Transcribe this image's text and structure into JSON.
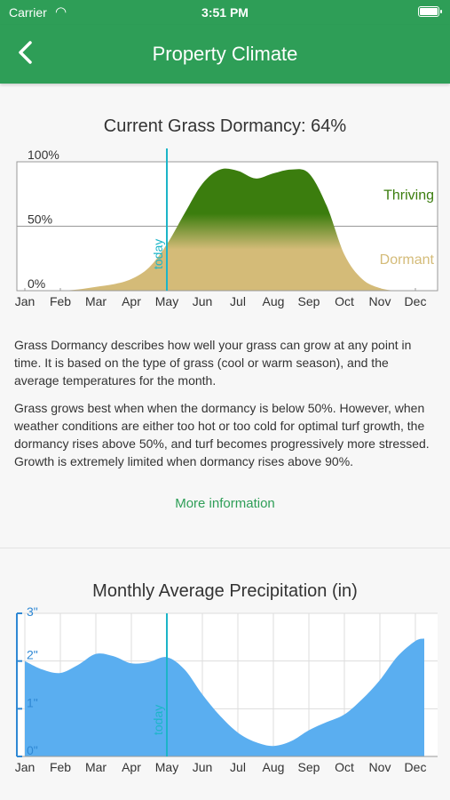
{
  "status_bar": {
    "carrier": "Carrier",
    "time": "3:51 PM",
    "wifi_icon": "wifi-icon",
    "battery_icon": "battery-icon"
  },
  "nav": {
    "title": "Property Climate",
    "back_icon": "chevron-left-icon"
  },
  "dormancy": {
    "title": "Current Grass Dormancy: 64%",
    "today_label": "today",
    "thriving_label": "Thriving",
    "dormant_label": "Dormant",
    "description_1": "Grass Dormancy describes how well your grass can grow at any point in time. It is based on the type of grass (cool or warm season), and the average temperatures for the month.",
    "description_2": "Grass grows best when when the dormancy is below 50%. However, when weather conditions are either too hot or too cold for optimal turf growth, the dormancy rises above 50%, and turf becomes progressively more stressed. Growth is extremely limited when dormancy rises above 90%.",
    "more_info": "More information"
  },
  "precipitation": {
    "title": "Monthly Average Precipitation (in)",
    "today_label": "today"
  },
  "colors": {
    "header": "#2e9e57",
    "thriving": "#3b7d0e",
    "dormant": "#d4bb78",
    "today_line": "#1cb5c8",
    "precip_fill": "#5aaef0",
    "precip_axis": "#2f88d4"
  },
  "chart_data": [
    {
      "type": "area",
      "title": "Current Grass Dormancy: 64%",
      "categories": [
        "Jan",
        "Feb",
        "Mar",
        "Apr",
        "May",
        "Jun",
        "Jul",
        "Aug",
        "Sep",
        "Oct",
        "Nov",
        "Dec"
      ],
      "yticks": [
        "0%",
        "50%",
        "100%"
      ],
      "ylim": [
        0,
        100
      ],
      "today": 4.0,
      "x": [
        0,
        0.5,
        1,
        1.5,
        2,
        2.5,
        3,
        3.5,
        4,
        4.5,
        5,
        5.5,
        6,
        6.5,
        7,
        7.5,
        8,
        8.5,
        9,
        9.5,
        10,
        10.5,
        11
      ],
      "values": [
        0,
        0,
        0,
        1,
        3,
        5,
        9,
        18,
        36,
        60,
        83,
        94,
        93,
        87,
        91,
        94,
        91,
        66,
        28,
        9,
        2,
        0,
        0
      ],
      "threshold": 50,
      "annotations": [
        "Thriving",
        "Dormant",
        "today"
      ]
    },
    {
      "type": "area",
      "title": "Monthly Average Precipitation (in)",
      "categories": [
        "Jan",
        "Feb",
        "Mar",
        "Apr",
        "May",
        "Jun",
        "Jul",
        "Aug",
        "Sep",
        "Oct",
        "Nov",
        "Dec"
      ],
      "yticks": [
        "0\"",
        "1\"",
        "2\"",
        "3\""
      ],
      "ylim": [
        0,
        3
      ],
      "today": 4.0,
      "x": [
        0,
        0.5,
        1,
        1.5,
        2,
        2.5,
        3,
        3.5,
        4,
        4.5,
        5,
        5.5,
        6,
        6.5,
        7,
        7.5,
        8,
        8.5,
        9,
        9.5,
        10,
        10.5,
        11,
        11.25
      ],
      "values": [
        2.0,
        1.82,
        1.75,
        1.92,
        2.15,
        2.1,
        1.95,
        1.98,
        2.08,
        1.82,
        1.3,
        0.85,
        0.5,
        0.3,
        0.22,
        0.32,
        0.55,
        0.72,
        0.88,
        1.2,
        1.6,
        2.1,
        2.42,
        2.47
      ],
      "annotations": [
        "today"
      ]
    }
  ]
}
